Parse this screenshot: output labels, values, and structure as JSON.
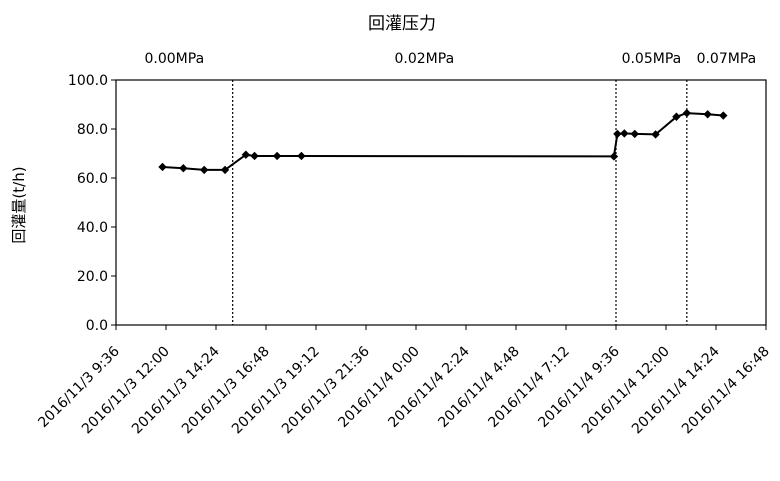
{
  "chart_data": {
    "type": "line",
    "title": "回灌压力",
    "ylabel": "回灌量(t/h)",
    "xlabel": "",
    "ylim": [
      0,
      100
    ],
    "yticks": [
      "0.0",
      "20.0",
      "40.0",
      "60.0",
      "80.0",
      "100.0"
    ],
    "xlim": [
      "2016/11/3 9:36",
      "2016/11/4 16:48"
    ],
    "xticks": [
      "2016/11/3 9:36",
      "2016/11/3 12:00",
      "2016/11/3 14:24",
      "2016/11/3 16:48",
      "2016/11/3 19:12",
      "2016/11/3 21:36",
      "2016/11/4 0:00",
      "2016/11/4 2:24",
      "2016/11/4 4:48",
      "2016/11/4 7:12",
      "2016/11/4 9:36",
      "2016/11/4 12:00",
      "2016/11/4 14:24",
      "2016/11/4 16:48"
    ],
    "grid": false,
    "phases": [
      {
        "label": "0.00MPa",
        "start": "2016/11/3 9:36",
        "end": "2016/11/3 15:12"
      },
      {
        "label": "0.02MPa",
        "start": "2016/11/3 15:12",
        "end": "2016/11/4 9:36"
      },
      {
        "label": "0.05MPa",
        "start": "2016/11/4 9:36",
        "end": "2016/11/4 13:00"
      },
      {
        "label": "0.07MPa",
        "start": "2016/11/4 13:00",
        "end": "2016/11/4 16:48"
      }
    ],
    "series": [
      {
        "points": [
          {
            "x": "2016/11/3 11:50",
            "y": 64.5
          },
          {
            "x": "2016/11/3 12:50",
            "y": 64.0
          },
          {
            "x": "2016/11/3 13:50",
            "y": 63.3
          },
          {
            "x": "2016/11/3 14:50",
            "y": 63.3
          },
          {
            "x": "2016/11/3 15:50",
            "y": 69.5
          },
          {
            "x": "2016/11/3 16:15",
            "y": 69.0
          },
          {
            "x": "2016/11/3 17:20",
            "y": 69.0
          },
          {
            "x": "2016/11/3 18:30",
            "y": 69.0
          },
          {
            "x": "2016/11/4 9:30",
            "y": 68.8
          },
          {
            "x": "2016/11/4 9:40",
            "y": 78.0
          },
          {
            "x": "2016/11/4 10:00",
            "y": 78.2
          },
          {
            "x": "2016/11/4 10:30",
            "y": 78.0
          },
          {
            "x": "2016/11/4 11:30",
            "y": 77.8
          },
          {
            "x": "2016/11/4 12:30",
            "y": 85.0
          },
          {
            "x": "2016/11/4 13:00",
            "y": 86.5
          },
          {
            "x": "2016/11/4 14:00",
            "y": 86.0
          },
          {
            "x": "2016/11/4 14:45",
            "y": 85.5
          }
        ]
      }
    ]
  }
}
